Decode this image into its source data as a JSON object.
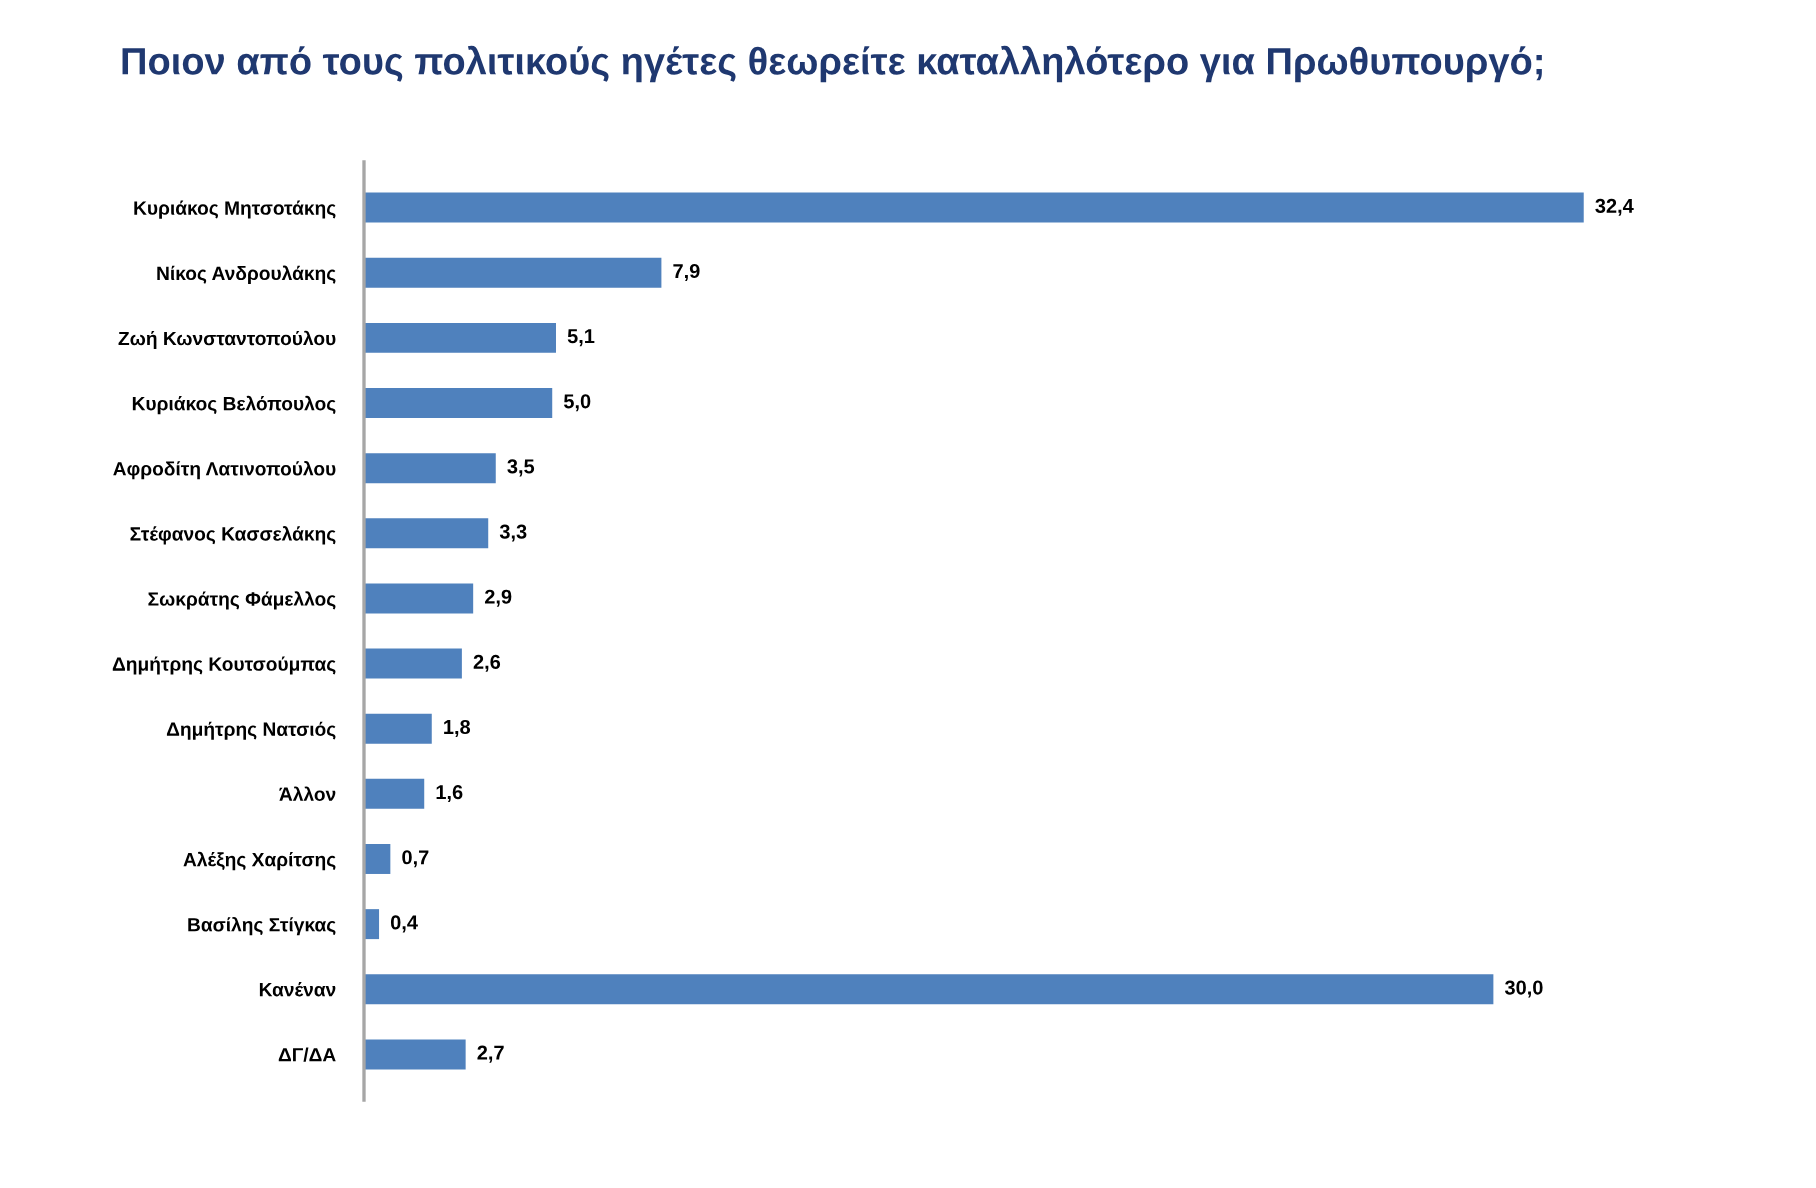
{
  "chart_data": {
    "type": "bar",
    "orientation": "horizontal",
    "title": "Ποιον από τους πολιτικούς ηγέτες θεωρείτε καταλληλότερο για Πρωθυπουργό;",
    "categories": [
      "Κυριάκος Μητσοτάκης",
      "Νίκος Ανδρουλάκης",
      "Ζωή Κωνσταντοπούλου",
      "Κυριάκος Βελόπουλος",
      "Αφροδίτη Λατινοπούλου",
      "Στέφανος Κασσελάκης",
      "Σωκράτης Φάμελλος",
      "Δημήτρης Κουτσούμπας",
      "Δημήτρης Νατσιός",
      "Άλλον",
      "Αλέξης Χαρίτσης",
      "Βασίλης Στίγκας",
      "Κανέναν",
      "ΔΓ/ΔΑ"
    ],
    "values": [
      32.4,
      7.9,
      5.1,
      5.0,
      3.5,
      3.3,
      2.9,
      2.6,
      1.8,
      1.6,
      0.7,
      0.4,
      30.0,
      2.7
    ],
    "value_labels": [
      "32,4",
      "7,9",
      "5,1",
      "5,0",
      "3,5",
      "3,3",
      "2,9",
      "2,6",
      "1,8",
      "1,6",
      "0,7",
      "0,4",
      "30,0",
      "2,7"
    ],
    "color": "#4f81bd"
  }
}
